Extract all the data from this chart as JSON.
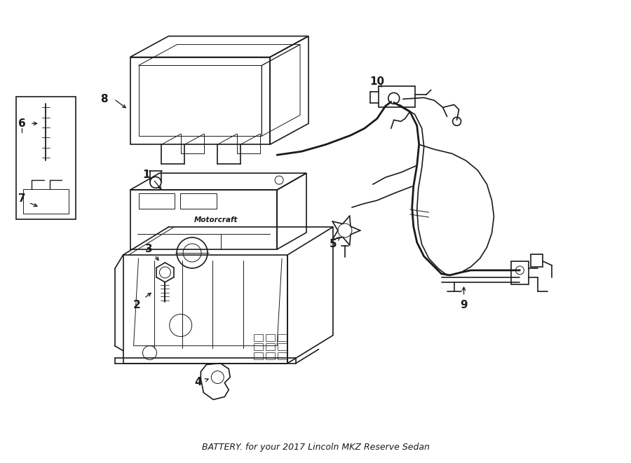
{
  "title": "BATTERY. for your 2017 Lincoln MKZ Reserve Sedan",
  "bg": "#ffffff",
  "lc": "#1a1a1a",
  "lw": 1.2,
  "lw_thick": 2.0,
  "lw_thin": 0.7,
  "fig_w": 9.0,
  "fig_h": 6.61,
  "dpi": 100,
  "xlim": [
    0,
    9
  ],
  "ylim": [
    0,
    6.61
  ]
}
